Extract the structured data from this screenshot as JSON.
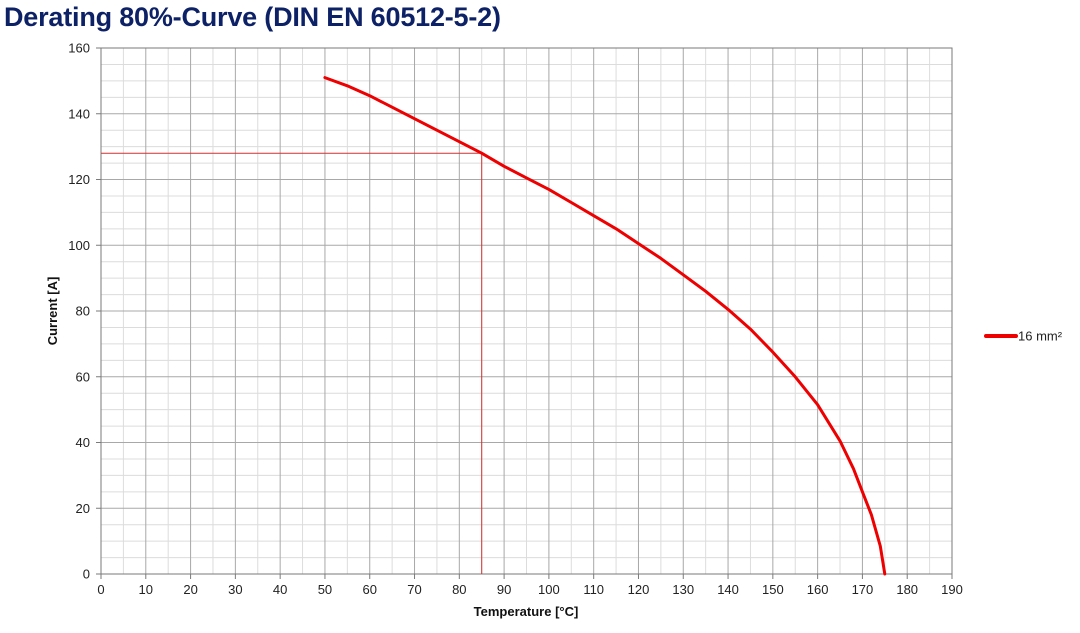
{
  "chart_data": {
    "type": "line",
    "title": "Derating 80%-Curve (DIN EN 60512-5-2)",
    "xlabel": "Temperature [°C]",
    "ylabel": "Current [A]",
    "xlim": [
      0,
      190
    ],
    "ylim": [
      0,
      160
    ],
    "x_ticks": [
      "0",
      "10",
      "20",
      "30",
      "40",
      "50",
      "60",
      "70",
      "80",
      "90",
      "100",
      "110",
      "120",
      "130",
      "140",
      "150",
      "160",
      "170",
      "180",
      "190"
    ],
    "y_ticks": [
      "0",
      "20",
      "40",
      "60",
      "80",
      "100",
      "120",
      "140",
      "160"
    ],
    "grid": true,
    "legend_position": "right",
    "series": [
      {
        "name": "16 mm²",
        "color": "#ee0000",
        "x": [
          50,
          55,
          60,
          65,
          70,
          75,
          80,
          85,
          90,
          95,
          100,
          105,
          110,
          115,
          120,
          125,
          130,
          135,
          140,
          145,
          150,
          155,
          160,
          165,
          168,
          170,
          172,
          174,
          175
        ],
        "y": [
          151,
          148.5,
          145.5,
          142,
          138.5,
          135,
          131.5,
          128,
          124,
          120.5,
          117,
          113,
          109,
          105,
          100.5,
          96,
          91,
          86,
          80.5,
          74.5,
          67.5,
          60,
          51.5,
          40.5,
          32,
          25,
          18,
          8.5,
          0
        ]
      }
    ],
    "reference_lines": {
      "color": "#d43030",
      "x": 85,
      "y": 128
    }
  }
}
